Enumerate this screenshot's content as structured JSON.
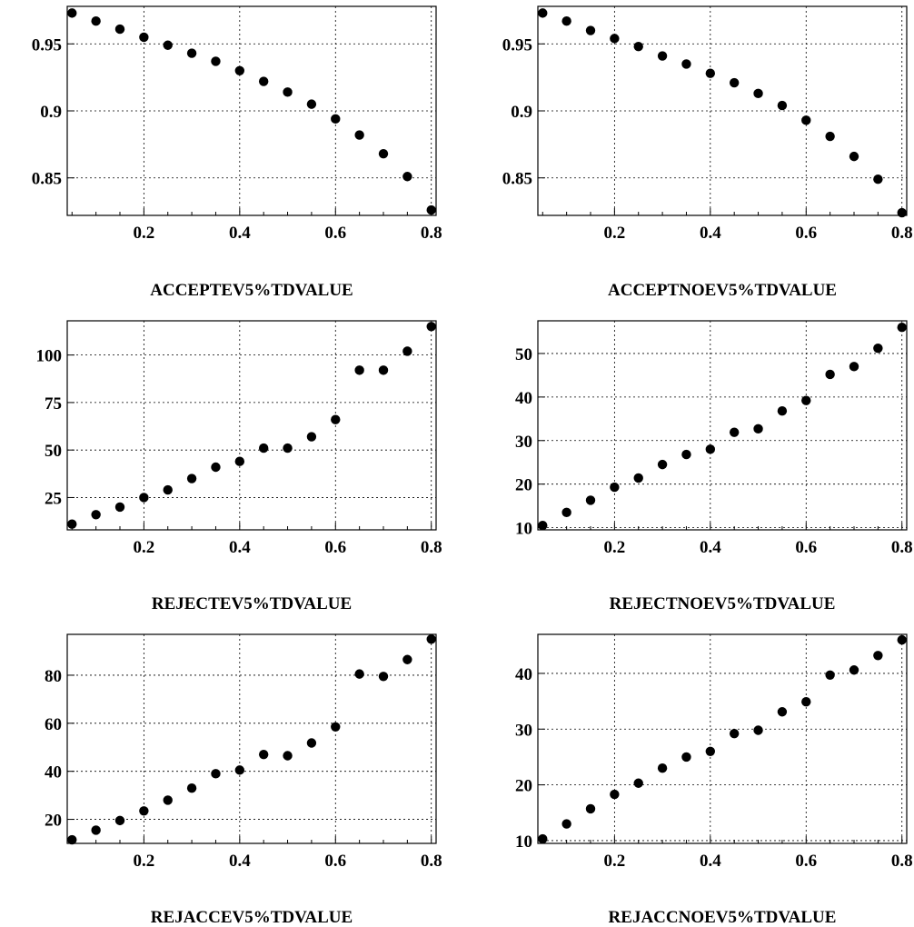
{
  "chart_data": [
    {
      "type": "scatter",
      "xlabel": "ACCEPTEV5%TDVALUE",
      "ylabel": "",
      "xlim": [
        0.04,
        0.81
      ],
      "ylim": [
        0.822,
        0.978
      ],
      "xticks": [
        0.2,
        0.4,
        0.6,
        0.8
      ],
      "xtick_labels": [
        "0.2",
        "0.4",
        "0.6",
        "0.8"
      ],
      "yticks": [
        0.85,
        0.9,
        0.95
      ],
      "ytick_labels": [
        "0.85",
        "0.9",
        "0.95"
      ],
      "grid": true,
      "x": [
        0.05,
        0.1,
        0.15,
        0.2,
        0.25,
        0.3,
        0.35,
        0.4,
        0.45,
        0.5,
        0.55,
        0.6,
        0.65,
        0.7,
        0.75,
        0.8
      ],
      "y": [
        0.973,
        0.967,
        0.961,
        0.955,
        0.949,
        0.943,
        0.937,
        0.93,
        0.922,
        0.914,
        0.905,
        0.894,
        0.882,
        0.868,
        0.851,
        0.826
      ]
    },
    {
      "type": "scatter",
      "xlabel": "ACCEPTNOEV5%TDVALUE",
      "ylabel": "",
      "xlim": [
        0.04,
        0.81
      ],
      "ylim": [
        0.822,
        0.978
      ],
      "xticks": [
        0.2,
        0.4,
        0.6,
        0.8
      ],
      "xtick_labels": [
        "0.2",
        "0.4",
        "0.6",
        "0.8"
      ],
      "yticks": [
        0.85,
        0.9,
        0.95
      ],
      "ytick_labels": [
        "0.85",
        "0.9",
        "0.95"
      ],
      "grid": true,
      "x": [
        0.05,
        0.1,
        0.15,
        0.2,
        0.25,
        0.3,
        0.35,
        0.4,
        0.45,
        0.5,
        0.55,
        0.6,
        0.65,
        0.7,
        0.75,
        0.8
      ],
      "y": [
        0.973,
        0.967,
        0.96,
        0.954,
        0.948,
        0.941,
        0.935,
        0.928,
        0.921,
        0.913,
        0.904,
        0.893,
        0.881,
        0.866,
        0.849,
        0.824
      ]
    },
    {
      "type": "scatter",
      "xlabel": "REJECTEV5%TDVALUE",
      "ylabel": "",
      "xlim": [
        0.04,
        0.81
      ],
      "ylim": [
        8,
        118
      ],
      "xticks": [
        0.2,
        0.4,
        0.6,
        0.8
      ],
      "xtick_labels": [
        "0.2",
        "0.4",
        "0.6",
        "0.8"
      ],
      "yticks": [
        25,
        50,
        75,
        100
      ],
      "ytick_labels": [
        "25",
        "50",
        "75",
        "100"
      ],
      "grid": true,
      "x": [
        0.05,
        0.1,
        0.15,
        0.2,
        0.25,
        0.3,
        0.35,
        0.4,
        0.45,
        0.5,
        0.55,
        0.6,
        0.65,
        0.7,
        0.75,
        0.8
      ],
      "y": [
        11,
        16,
        20,
        25,
        29,
        35,
        41,
        44,
        51,
        51,
        57,
        66,
        92,
        92,
        102,
        115
      ]
    },
    {
      "type": "scatter",
      "xlabel": "REJECTNOEV5%TDVALUE",
      "ylabel": "",
      "xlim": [
        0.04,
        0.81
      ],
      "ylim": [
        9.5,
        57.5
      ],
      "xticks": [
        0.2,
        0.4,
        0.6,
        0.8
      ],
      "xtick_labels": [
        "0.2",
        "0.4",
        "0.6",
        "0.8"
      ],
      "yticks": [
        10,
        20,
        30,
        40,
        50
      ],
      "ytick_labels": [
        "10",
        "20",
        "30",
        "40",
        "50"
      ],
      "grid": true,
      "x": [
        0.05,
        0.1,
        0.15,
        0.2,
        0.25,
        0.3,
        0.35,
        0.4,
        0.45,
        0.5,
        0.55,
        0.6,
        0.65,
        0.7,
        0.75,
        0.8
      ],
      "y": [
        10.5,
        13.5,
        16.3,
        19.3,
        21.4,
        24.5,
        26.8,
        28.0,
        31.9,
        32.7,
        36.8,
        39.2,
        45.2,
        47.0,
        51.2,
        56.0
      ]
    },
    {
      "type": "scatter",
      "xlabel": "REJACCEV5%TDVALUE",
      "ylabel": "",
      "xlim": [
        0.04,
        0.81
      ],
      "ylim": [
        10,
        97
      ],
      "xticks": [
        0.2,
        0.4,
        0.6,
        0.8
      ],
      "xtick_labels": [
        "0.2",
        "0.4",
        "0.6",
        "0.8"
      ],
      "yticks": [
        20,
        40,
        60,
        80
      ],
      "ytick_labels": [
        "20",
        "40",
        "60",
        "80"
      ],
      "grid": true,
      "x": [
        0.05,
        0.1,
        0.15,
        0.2,
        0.25,
        0.3,
        0.35,
        0.4,
        0.45,
        0.5,
        0.55,
        0.6,
        0.65,
        0.7,
        0.75,
        0.8
      ],
      "y": [
        11.5,
        15.5,
        19.5,
        23.5,
        28.0,
        33.0,
        39.0,
        40.5,
        47.0,
        46.5,
        51.8,
        58.5,
        80.5,
        79.5,
        86.5,
        95.0
      ]
    },
    {
      "type": "scatter",
      "xlabel": "REJACCNOEV5%TDVALUE",
      "ylabel": "",
      "xlim": [
        0.04,
        0.81
      ],
      "ylim": [
        9.5,
        47
      ],
      "xticks": [
        0.2,
        0.4,
        0.6,
        0.8
      ],
      "xtick_labels": [
        "0.2",
        "0.4",
        "0.6",
        "0.8"
      ],
      "yticks": [
        10,
        20,
        30,
        40
      ],
      "ytick_labels": [
        "10",
        "20",
        "30",
        "40"
      ],
      "grid": true,
      "x": [
        0.05,
        0.1,
        0.15,
        0.2,
        0.25,
        0.3,
        0.35,
        0.4,
        0.45,
        0.5,
        0.55,
        0.6,
        0.65,
        0.7,
        0.75,
        0.8
      ],
      "y": [
        10.3,
        13.0,
        15.7,
        18.3,
        20.3,
        23.0,
        25.0,
        26.0,
        29.2,
        29.8,
        33.1,
        34.9,
        39.7,
        40.6,
        43.2,
        46.0
      ]
    }
  ]
}
